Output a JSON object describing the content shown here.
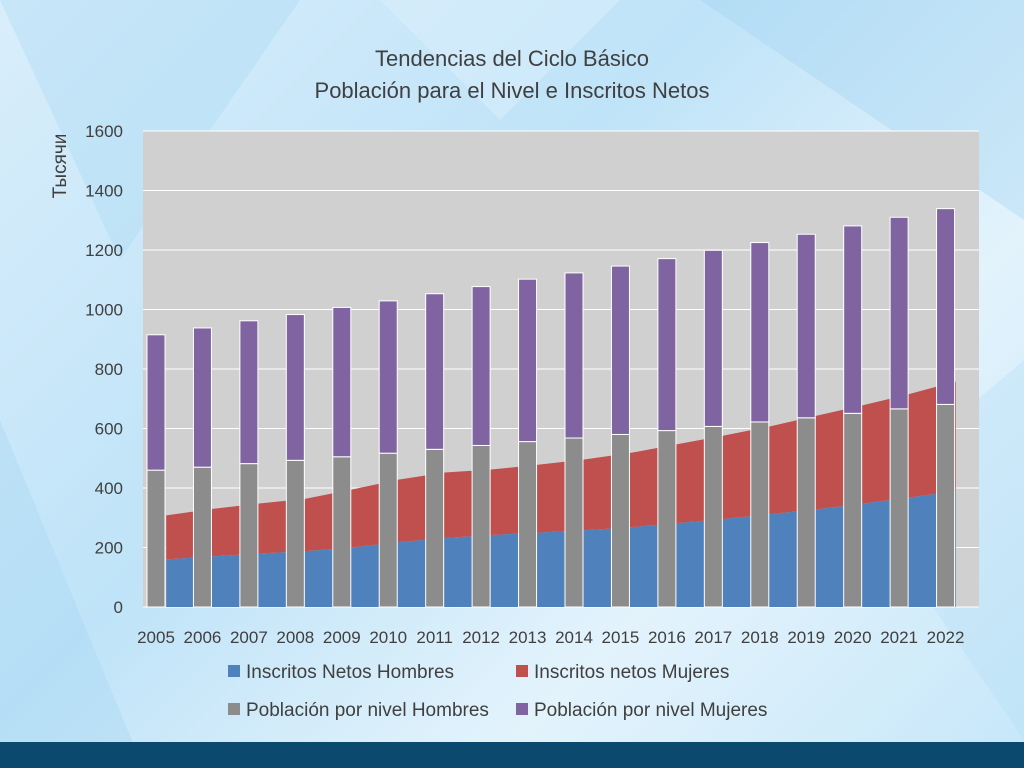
{
  "chart_data": {
    "type": "bar",
    "title": "Tendencias del Ciclo Básico",
    "subtitle": "Población para el Nivel e Inscritos Netos",
    "ylabel": "Тысячи",
    "ylim": [
      0,
      1600
    ],
    "yticks": [
      "0",
      "200",
      "400",
      "600",
      "800",
      "1000",
      "1200",
      "1400",
      "1600"
    ],
    "grid": true,
    "legend_placement": "bottom",
    "categories": [
      "2005",
      "2006",
      "2007",
      "2008",
      "2009",
      "2010",
      "2011",
      "2012",
      "2013",
      "2014",
      "2015",
      "2016",
      "2017",
      "2018",
      "2019",
      "2020",
      "2021",
      "2022"
    ],
    "area_series": [
      {
        "name": "Inscritos Netos Hombres",
        "color": "#4f81bd",
        "values": [
          160,
          170,
          180,
          188,
          200,
          218,
          232,
          242,
          250,
          258,
          268,
          282,
          296,
          312,
          328,
          348,
          368,
          390
        ]
      },
      {
        "name": "Inscritos netos Mujeres",
        "color": "#c0504d",
        "values": [
          148,
          160,
          168,
          176,
          195,
          210,
          220,
          220,
          228,
          238,
          250,
          265,
          280,
          295,
          315,
          330,
          348,
          368
        ]
      }
    ],
    "bar_series": [
      {
        "name": "Población por nivel Hombres",
        "color": "#8c8c8c",
        "values": [
          460,
          470,
          482,
          493,
          505,
          517,
          530,
          543,
          556,
          568,
          580,
          593,
          607,
          622,
          636,
          651,
          666,
          681
        ]
      },
      {
        "name": "Población por nivel Mujeres",
        "color": "#8064a2",
        "values": [
          455,
          468,
          480,
          490,
          502,
          512,
          523,
          534,
          546,
          555,
          566,
          578,
          592,
          603,
          617,
          630,
          644,
          658
        ]
      }
    ],
    "plot_bg": "#d0d0d0"
  }
}
